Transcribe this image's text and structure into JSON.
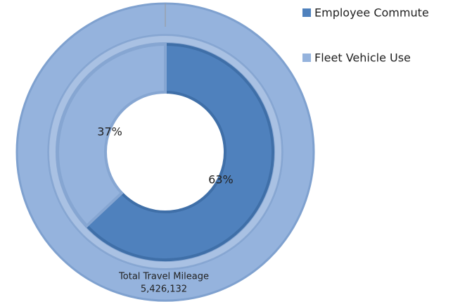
{
  "chart_data": {
    "type": "donut",
    "categories": [
      "Employee Commute",
      "Fleet Vehicle Use"
    ],
    "values": [
      63,
      37
    ],
    "value_labels": [
      "63%",
      "37%"
    ],
    "colors": [
      "#4f81bd",
      "#95b3dd"
    ],
    "total": {
      "label": "Total Travel Mileage",
      "value": 5426132,
      "value_label": "5,426,132",
      "color": "#95b3dd"
    },
    "legend": "top-right"
  }
}
